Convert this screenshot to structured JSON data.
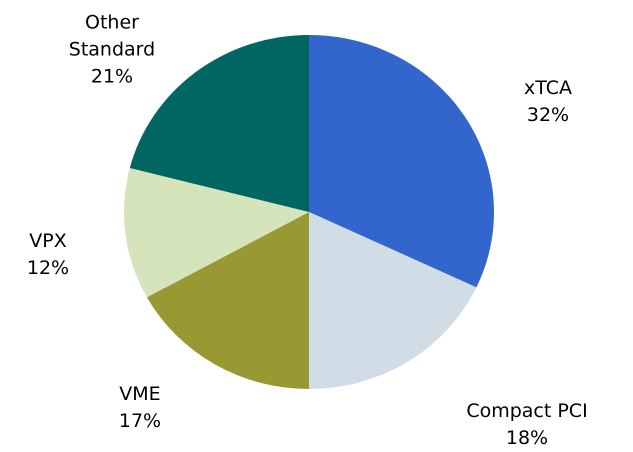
{
  "chart_data": {
    "type": "pie",
    "categories": [
      "xTCA",
      "Compact PCI",
      "VME",
      "VPX",
      "Other Standard"
    ],
    "values": [
      32,
      18,
      17,
      12,
      21
    ],
    "value_labels": [
      "32%",
      "18%",
      "17%",
      "12%",
      "21%"
    ],
    "colors": [
      "#3366cc",
      "#d0dde6",
      "#999933",
      "#d6e4bc",
      "#006661"
    ]
  }
}
